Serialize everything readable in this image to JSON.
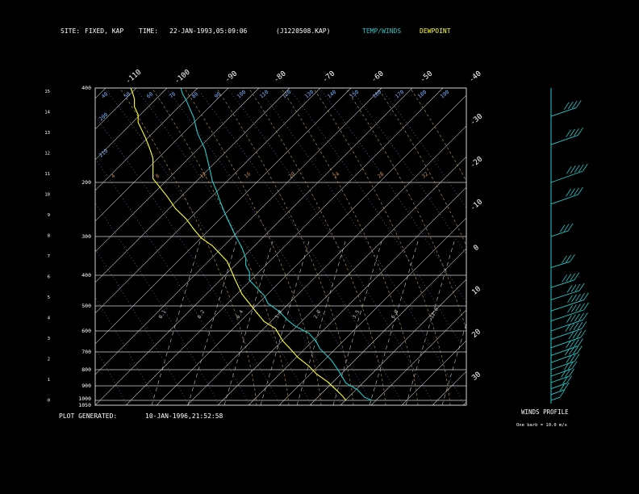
{
  "header": {
    "site_label": "SITE:",
    "site_value": "FIXED, KAP",
    "time_label": "TIME:",
    "time_value": "22-JAN-1993,05:09:06",
    "file_id": "(J1220508.KAP)",
    "legend_temp": "TEMP/WINDS",
    "legend_dew": "DEWPOINT"
  },
  "footer": {
    "generated_label": "PLOT GENERATED:",
    "generated_value": "10-JAN-1996,21:52:58"
  },
  "winds_panel": {
    "title": "WINDS PROFILE",
    "note": "One barb = 10.0 m/s"
  },
  "colors": {
    "temp": "#22cccc",
    "dewpoint": "#ffff33",
    "frame": "#d0d0d0",
    "isotherm": "#c8c8c8",
    "dry_adiabat": "#7f7fd0",
    "moist_adiabat": "#b08a4a",
    "mixing_ratio": "#c8c8c8",
    "label_cyan": "#7fb2ff",
    "label_orange": "#c08a4a"
  },
  "chart_data": {
    "type": "line",
    "pressure_ticks": [
      "400",
      "200",
      "300",
      "400",
      "500",
      "600",
      "700",
      "800",
      "900",
      "1000",
      "1050"
    ],
    "height_ticks": [
      "15",
      "14",
      "13",
      "12",
      "11",
      "10",
      "9",
      "8",
      "7",
      "6",
      "5",
      "4",
      "3",
      "2",
      "1",
      "0"
    ],
    "top_temp_labels": [
      "-110",
      "-100",
      "-90",
      "-80",
      "-70",
      "-60",
      "-50",
      "-40"
    ],
    "right_temp_labels": [
      "-30",
      "-20",
      "-10",
      "0",
      "10",
      "20",
      "30"
    ],
    "theta_labels": [
      "40",
      "50",
      "60",
      "70",
      "80",
      "90",
      "100",
      "110",
      "120",
      "130",
      "140",
      "150",
      "160",
      "170",
      "180",
      "190",
      "200",
      "210"
    ],
    "theta_e_labels": [
      "4",
      "8",
      "12",
      "16",
      "20",
      "24",
      "28",
      "32"
    ],
    "mixing_ratio_labels": [
      "0.1",
      "0.2",
      "0.4",
      "1.0",
      "2.0",
      "3.5",
      "6.0",
      "12.0"
    ],
    "series": [
      {
        "name": "TEMP/WINDS",
        "points": [
          [
            -55,
            1000
          ],
          [
            -57,
            990
          ],
          [
            -59,
            965
          ],
          [
            -62,
            945
          ],
          [
            -64,
            905
          ],
          [
            -66,
            870
          ],
          [
            -69,
            835
          ],
          [
            -70,
            812
          ],
          [
            -72,
            785
          ],
          [
            -76,
            760
          ],
          [
            -78,
            740
          ],
          [
            -80,
            715
          ],
          [
            -83,
            690
          ],
          [
            -84,
            665
          ],
          [
            -86,
            640
          ],
          [
            -88,
            615
          ],
          [
            -88,
            590
          ],
          [
            -89,
            568
          ],
          [
            -89,
            545
          ],
          [
            -90,
            512
          ],
          [
            -92,
            468
          ],
          [
            -93,
            442
          ],
          [
            -94,
            418
          ],
          [
            -95,
            390
          ],
          [
            -96,
            360
          ],
          [
            -97,
            325
          ],
          [
            -98,
            298
          ],
          [
            -98.5,
            270
          ],
          [
            -99,
            245
          ],
          [
            -99.5,
            220
          ],
          [
            -100,
            195
          ],
          [
            -101,
            170
          ],
          [
            -102,
            145
          ],
          [
            -102.5,
            120
          ],
          [
            -103,
            95
          ],
          [
            -104,
            68
          ],
          [
            -105,
            40
          ],
          [
            -106,
            20
          ],
          [
            -106.5,
            0
          ]
        ]
      },
      {
        "name": "DEWPOINT",
        "points": [
          [
            -62,
            1000
          ],
          [
            -63,
            985
          ],
          [
            -65,
            962
          ],
          [
            -67,
            940
          ],
          [
            -70,
            915
          ],
          [
            -72,
            890
          ],
          [
            -75,
            862
          ],
          [
            -77,
            835
          ],
          [
            -79,
            810
          ],
          [
            -80,
            790
          ],
          [
            -81,
            770
          ],
          [
            -84,
            748
          ],
          [
            -86,
            720
          ],
          [
            -88,
            690
          ],
          [
            -90,
            660
          ],
          [
            -91,
            635
          ],
          [
            -92,
            610
          ],
          [
            -93,
            582
          ],
          [
            -94,
            555
          ],
          [
            -96,
            530
          ],
          [
            -98,
            505
          ],
          [
            -101,
            480
          ],
          [
            -103,
            452
          ],
          [
            -105,
            420
          ],
          [
            -108,
            385
          ],
          [
            -110,
            350
          ],
          [
            -112,
            320
          ],
          [
            -114,
            290
          ],
          [
            -114,
            260
          ],
          [
            -114,
            225
          ],
          [
            -115,
            190
          ],
          [
            -116,
            160
          ],
          [
            -117,
            135
          ],
          [
            -118,
            110
          ],
          [
            -118,
            85
          ],
          [
            -119,
            60
          ],
          [
            -119,
            35
          ],
          [
            -119.5,
            15
          ],
          [
            -120,
            0
          ]
        ]
      }
    ],
    "winds": [
      {
        "p": 1000,
        "dir": 270,
        "spd": 12
      },
      {
        "p": 960,
        "dir": 270,
        "spd": 18
      },
      {
        "p": 920,
        "dir": 275,
        "spd": 22
      },
      {
        "p": 880,
        "dir": 280,
        "spd": 26
      },
      {
        "p": 840,
        "dir": 280,
        "spd": 30
      },
      {
        "p": 800,
        "dir": 285,
        "spd": 34
      },
      {
        "p": 760,
        "dir": 285,
        "spd": 38
      },
      {
        "p": 720,
        "dir": 290,
        "spd": 40
      },
      {
        "p": 680,
        "dir": 290,
        "spd": 44
      },
      {
        "p": 640,
        "dir": 295,
        "spd": 46
      },
      {
        "p": 600,
        "dir": 295,
        "spd": 48
      },
      {
        "p": 560,
        "dir": 300,
        "spd": 50
      },
      {
        "p": 520,
        "dir": 300,
        "spd": 50
      },
      {
        "p": 480,
        "dir": 305,
        "spd": 44
      },
      {
        "p": 440,
        "dir": 305,
        "spd": 36
      },
      {
        "p": 380,
        "dir": 310,
        "spd": 30
      },
      {
        "p": 300,
        "dir": 300,
        "spd": 26
      },
      {
        "p": 240,
        "dir": 290,
        "spd": 40
      },
      {
        "p": 200,
        "dir": 285,
        "spd": 46
      },
      {
        "p": 160,
        "dir": 290,
        "spd": 40
      },
      {
        "p": 130,
        "dir": 295,
        "spd": 38
      }
    ]
  }
}
